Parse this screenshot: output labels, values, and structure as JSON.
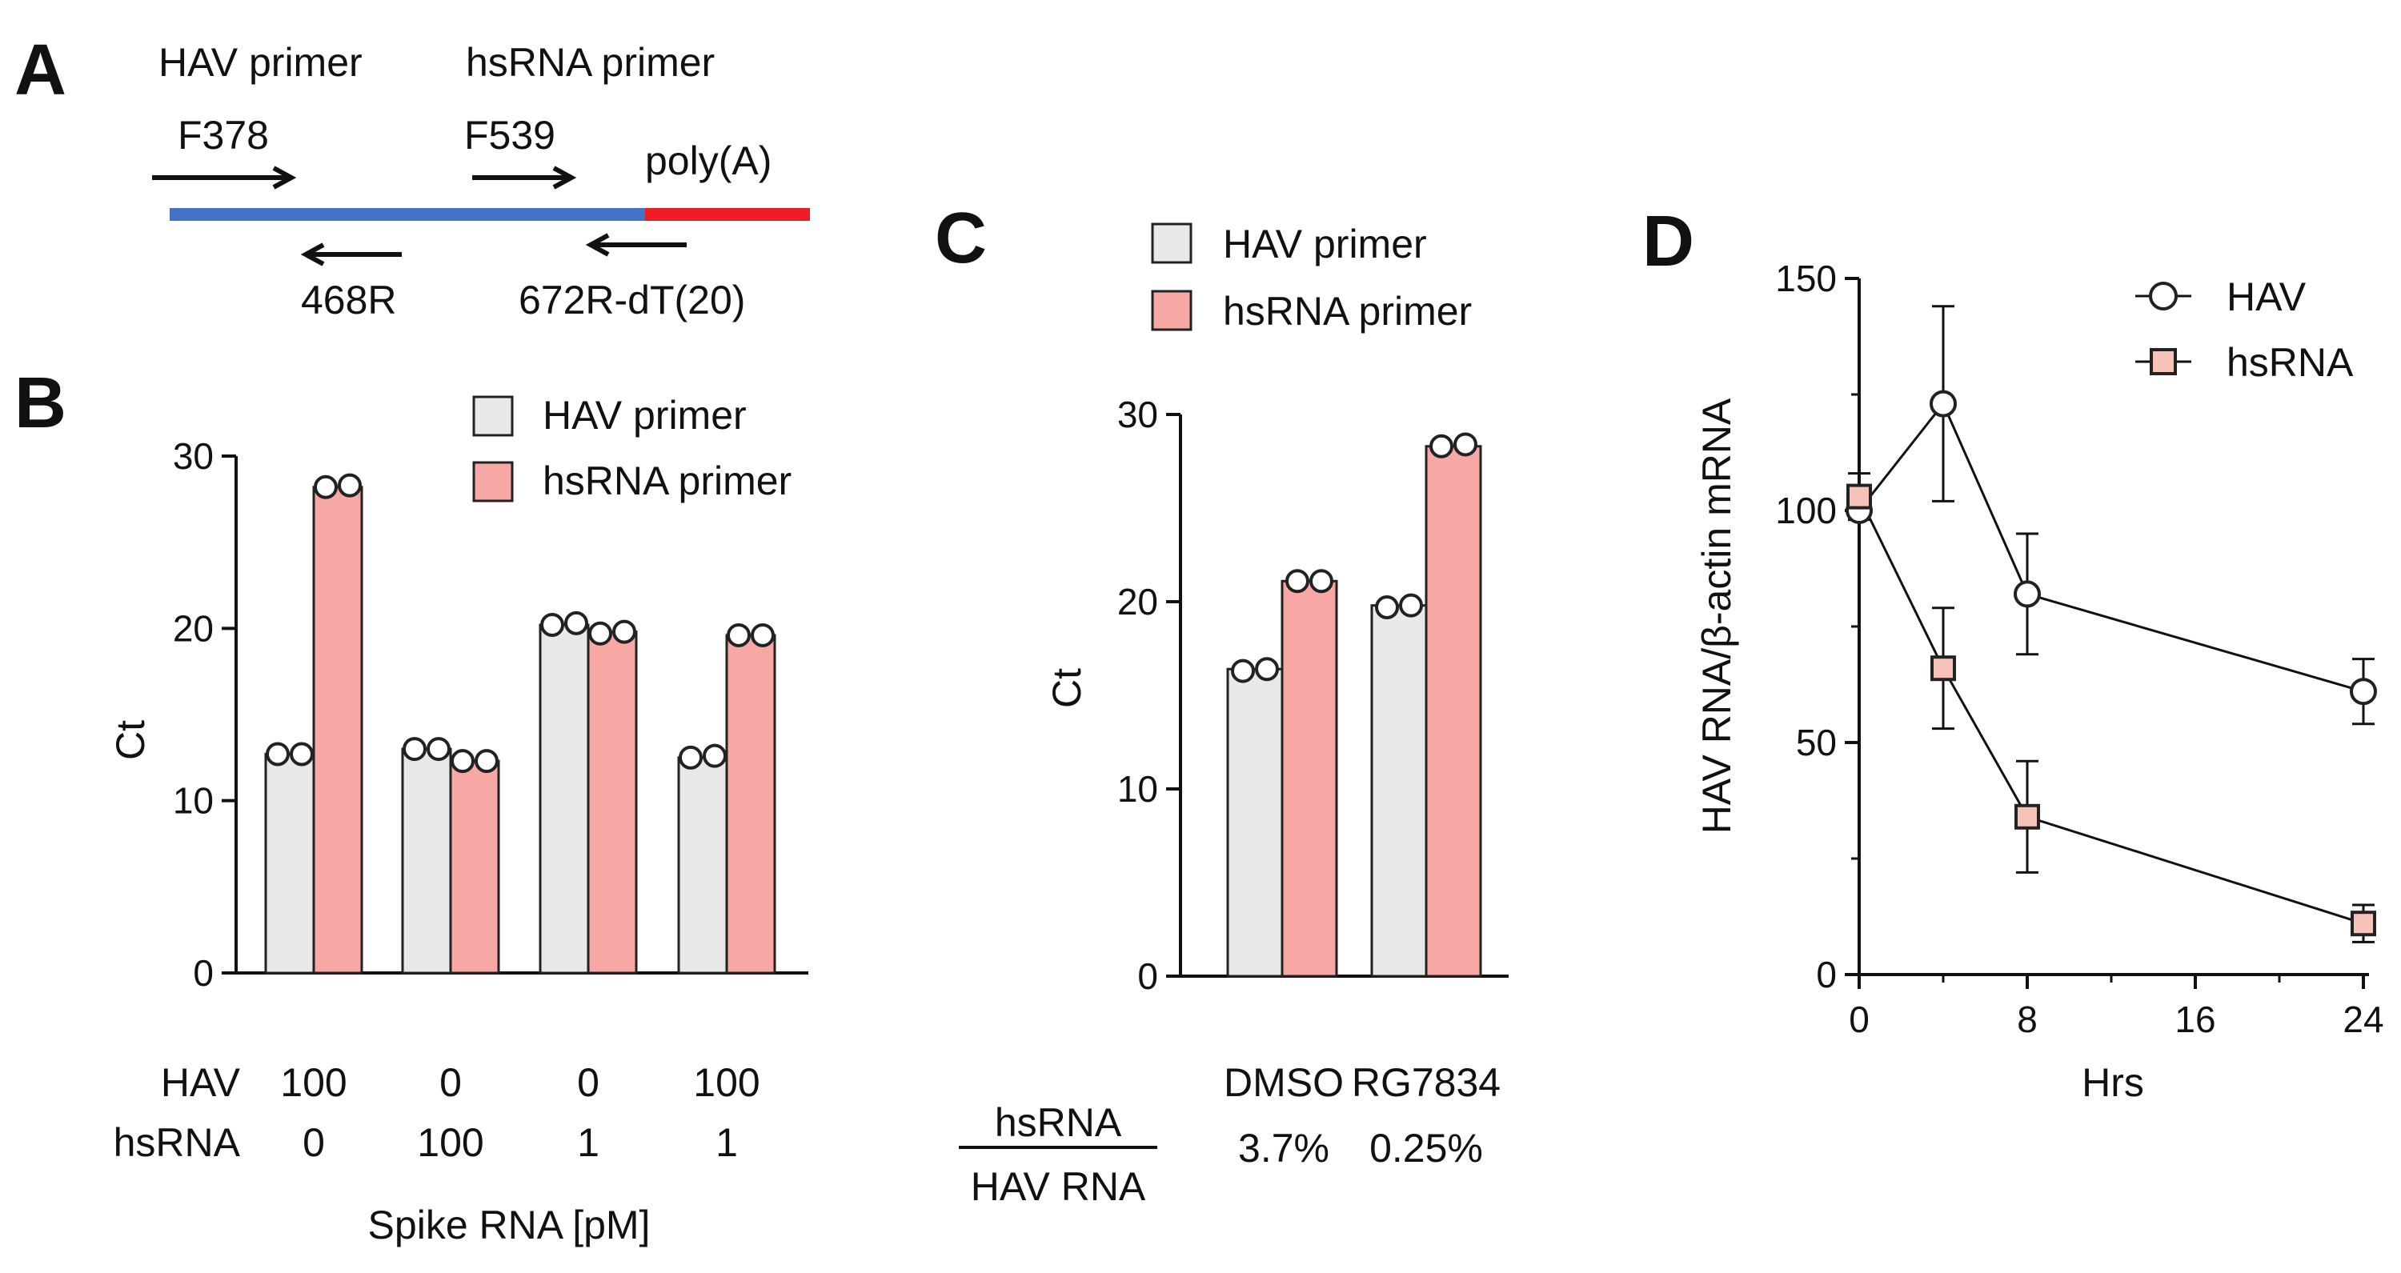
{
  "panels": {
    "a": "A",
    "b": "B",
    "c": "C",
    "d": "D"
  },
  "schematic": {
    "header_hav": "HAV primer",
    "header_hsrna": "hsRNA primer",
    "f378": "F378",
    "f539": "F539",
    "polya": "poly(A)",
    "r468": "468R",
    "r672": "672R-dT(20)",
    "colors": {
      "hav_segment": "#4472c4",
      "polya_segment": "#ee1c24"
    }
  },
  "colors": {
    "hav_bar": "#e8e8e8",
    "hsrna_bar": "#f7a8a5",
    "bar_edge": "#222222",
    "hsrna_marker": "#f7c2b8"
  },
  "chart_data": [
    {
      "panel": "B",
      "type": "bar",
      "ylabel": "Ct",
      "ylim": [
        0,
        30
      ],
      "yticks": [
        "0",
        "10",
        "20",
        "30"
      ],
      "legend": [
        "HAV primer",
        "hsRNA primer"
      ],
      "groups": [
        {
          "hav": "100",
          "hsrna": "0"
        },
        {
          "hav": "0",
          "hsrna": "100"
        },
        {
          "hav": "0",
          "hsrna": "1"
        },
        {
          "hav": "100",
          "hsrna": "1"
        }
      ],
      "row_labels": {
        "hav": "HAV",
        "hsrna": "hsRNA"
      },
      "xlabel": "Spike RNA [pM]",
      "series": [
        {
          "name": "HAV primer",
          "values": [
            12.7,
            13.0,
            20.2,
            12.5
          ],
          "points": [
            [
              12.7,
              12.7
            ],
            [
              13.0,
              13.0
            ],
            [
              20.2,
              20.3
            ],
            [
              12.5,
              12.6
            ]
          ]
        },
        {
          "name": "hsRNA primer",
          "values": [
            28.2,
            12.3,
            19.8,
            19.6
          ],
          "points": [
            [
              28.2,
              28.3
            ],
            [
              12.3,
              12.3
            ],
            [
              19.7,
              19.8
            ],
            [
              19.6,
              19.6
            ]
          ]
        }
      ]
    },
    {
      "panel": "C",
      "type": "bar",
      "ylabel": "Ct",
      "ylim": [
        0,
        30
      ],
      "yticks": [
        "0",
        "10",
        "20",
        "30"
      ],
      "legend": [
        "HAV primer",
        "hsRNA primer"
      ],
      "categories": [
        "DMSO",
        "RG7834"
      ],
      "ratios": [
        "3.7%",
        "0.25%"
      ],
      "ratio_numerator": "hsRNA",
      "ratio_denominator": "HAV RNA",
      "series": [
        {
          "name": "HAV primer",
          "values": [
            16.4,
            19.8
          ],
          "points": [
            [
              16.3,
              16.4
            ],
            [
              19.7,
              19.8
            ]
          ]
        },
        {
          "name": "hsRNA primer",
          "values": [
            21.1,
            28.3
          ],
          "points": [
            [
              21.1,
              21.1
            ],
            [
              28.3,
              28.4
            ]
          ]
        }
      ]
    },
    {
      "panel": "D",
      "type": "line",
      "xlabel": "Hrs",
      "ylabel": "HAV RNA/β-actin mRNA",
      "xlim": [
        0,
        24
      ],
      "ylim": [
        0,
        150
      ],
      "xticks": [
        "0",
        "8",
        "16",
        "24"
      ],
      "yticks": [
        "0",
        "50",
        "100",
        "150"
      ],
      "legend": [
        "HAV",
        "hsRNA"
      ],
      "series": [
        {
          "name": "HAV",
          "marker": "circle",
          "x": [
            0,
            4,
            8,
            24
          ],
          "y": [
            100,
            123,
            82,
            61
          ],
          "err": [
            0,
            21,
            13,
            7
          ]
        },
        {
          "name": "hsRNA",
          "marker": "square",
          "x": [
            0,
            4,
            8,
            24
          ],
          "y": [
            103,
            66,
            34,
            11
          ],
          "err": [
            5,
            13,
            12,
            4
          ]
        }
      ]
    }
  ]
}
